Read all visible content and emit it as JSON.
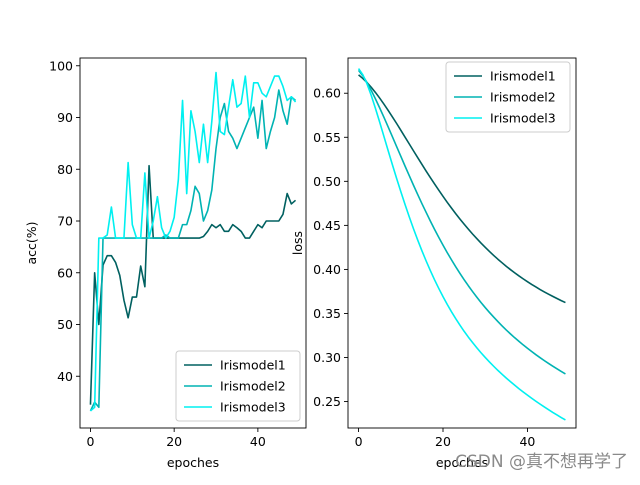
{
  "chart_data": [
    {
      "type": "line",
      "title": "",
      "xlabel": "epoches",
      "ylabel": "acc(%)",
      "xlim": [
        -2.5,
        51.5
      ],
      "ylim": [
        30,
        101.5
      ],
      "xticks": [
        0,
        20,
        40
      ],
      "yticks": [
        40,
        50,
        60,
        70,
        80,
        90,
        100
      ],
      "legend_position": "lower-right",
      "series": [
        {
          "name": "Irismodel1",
          "color": "#006060",
          "x": [
            0,
            1,
            2,
            3,
            4,
            5,
            6,
            7,
            8,
            9,
            10,
            11,
            12,
            13,
            14,
            15,
            16,
            17,
            18,
            19,
            20,
            21,
            22,
            23,
            24,
            25,
            26,
            27,
            28,
            29,
            30,
            31,
            32,
            33,
            34,
            35,
            36,
            37,
            38,
            39,
            40,
            41,
            42,
            43,
            44,
            45,
            46,
            47,
            48,
            49
          ],
          "values": [
            34.5,
            60,
            50,
            61.5,
            63.3,
            63.3,
            62,
            59.5,
            54.7,
            51.3,
            55.3,
            55.3,
            61.3,
            57.3,
            80.7,
            66.7,
            66.7,
            66.7,
            66.7,
            66.7,
            66.7,
            66.7,
            66.7,
            66.7,
            66.7,
            66.7,
            66.7,
            67,
            68,
            69.3,
            68.7,
            69.3,
            68,
            68,
            69.3,
            68.7,
            68,
            66.7,
            66.7,
            68,
            69.3,
            68.7,
            70,
            70,
            70,
            70,
            71.3,
            75.3,
            73.3,
            74
          ]
        },
        {
          "name": "Irismodel2",
          "color": "#00b3b3",
          "x": [
            0,
            1,
            2,
            3,
            4,
            5,
            6,
            7,
            8,
            9,
            10,
            11,
            12,
            13,
            14,
            15,
            16,
            17,
            18,
            19,
            20,
            21,
            22,
            23,
            24,
            25,
            26,
            27,
            28,
            29,
            30,
            31,
            32,
            33,
            34,
            35,
            36,
            37,
            38,
            39,
            40,
            41,
            42,
            43,
            44,
            45,
            46,
            47,
            48,
            49
          ],
          "values": [
            33.3,
            35,
            34,
            66.7,
            66.7,
            66.7,
            66.7,
            66.7,
            66.7,
            66.7,
            66.7,
            66.7,
            66.7,
            66.7,
            66.7,
            66.7,
            66.7,
            66.7,
            67.3,
            66.7,
            66.7,
            66.7,
            69.3,
            69.3,
            72,
            76.7,
            75.3,
            70,
            72,
            76,
            84,
            90,
            92.7,
            87.3,
            86,
            84,
            86,
            88,
            90,
            92,
            86,
            93.3,
            84,
            87.3,
            90,
            95.3,
            91.3,
            88.7,
            94,
            93.3
          ]
        },
        {
          "name": "Irismodel3",
          "color": "#00f0f0",
          "x": [
            0,
            1,
            2,
            3,
            4,
            5,
            6,
            7,
            8,
            9,
            10,
            11,
            12,
            13,
            14,
            15,
            16,
            17,
            18,
            19,
            20,
            21,
            22,
            23,
            24,
            25,
            26,
            27,
            28,
            29,
            30,
            31,
            32,
            33,
            34,
            35,
            36,
            37,
            38,
            39,
            40,
            41,
            42,
            43,
            44,
            45,
            46,
            47,
            48,
            49
          ],
          "values": [
            33.3,
            34,
            66.7,
            66.7,
            67.3,
            72.7,
            66.7,
            66.7,
            66.7,
            81.3,
            69.3,
            66.7,
            66.7,
            79.3,
            66.7,
            70,
            74.7,
            68.7,
            66.7,
            68,
            70.7,
            78,
            93.3,
            75.3,
            91.3,
            87.3,
            81.3,
            88.7,
            81.3,
            89.3,
            98.7,
            87.3,
            86.7,
            92,
            97.3,
            92,
            92.7,
            98,
            90,
            96.7,
            96.7,
            94.7,
            94,
            96,
            98,
            98,
            96,
            93.3,
            94,
            93
          ]
        }
      ]
    },
    {
      "type": "line",
      "title": "",
      "xlabel": "epoches",
      "ylabel": "loss",
      "xlim": [
        -2.5,
        51.5
      ],
      "ylim": [
        0.22,
        0.64
      ],
      "xticks": [
        0,
        20,
        40
      ],
      "yticks": [
        0.25,
        0.3,
        0.35,
        0.4,
        0.45,
        0.5,
        0.55,
        0.6
      ],
      "legend_position": "upper-right",
      "series": [
        {
          "name": "Irismodel1",
          "color": "#006060",
          "x": [
            0,
            1,
            2,
            3,
            4,
            5,
            6,
            7,
            8,
            9,
            10,
            11,
            12,
            13,
            14,
            15,
            16,
            17,
            18,
            19,
            20,
            21,
            22,
            23,
            24,
            25,
            26,
            27,
            28,
            29,
            30,
            31,
            32,
            33,
            34,
            35,
            36,
            37,
            38,
            39,
            40,
            41,
            42,
            43,
            44,
            45,
            46,
            47,
            48,
            49
          ],
          "values": [
            0.6209,
            0.6168,
            0.6121,
            0.6068,
            0.6009,
            0.5945,
            0.5877,
            0.5806,
            0.5733,
            0.5658,
            0.5581,
            0.5503,
            0.5425,
            0.5347,
            0.527,
            0.5193,
            0.5117,
            0.5043,
            0.497,
            0.4899,
            0.483,
            0.4762,
            0.4697,
            0.4634,
            0.4573,
            0.4514,
            0.4457,
            0.4402,
            0.435,
            0.4299,
            0.4251,
            0.4204,
            0.4159,
            0.4116,
            0.4075,
            0.4035,
            0.3997,
            0.3961,
            0.3926,
            0.3893,
            0.3861,
            0.383,
            0.3801,
            0.3772,
            0.3745,
            0.3719,
            0.3694,
            0.367,
            0.3646,
            0.3624
          ]
        },
        {
          "name": "Irismodel2",
          "color": "#00b3b3",
          "x": [
            0,
            1,
            2,
            3,
            4,
            5,
            6,
            7,
            8,
            9,
            10,
            11,
            12,
            13,
            14,
            15,
            16,
            17,
            18,
            19,
            20,
            21,
            22,
            23,
            24,
            25,
            26,
            27,
            28,
            29,
            30,
            31,
            32,
            33,
            34,
            35,
            36,
            37,
            38,
            39,
            40,
            41,
            42,
            43,
            44,
            45,
            46,
            47,
            48,
            49
          ],
          "values": [
            0.626,
            0.6199,
            0.6121,
            0.6033,
            0.5936,
            0.5834,
            0.5728,
            0.5619,
            0.5508,
            0.5396,
            0.5285,
            0.5174,
            0.5065,
            0.4957,
            0.4851,
            0.4748,
            0.4648,
            0.455,
            0.4455,
            0.4364,
            0.4276,
            0.4191,
            0.411,
            0.4031,
            0.3956,
            0.3884,
            0.3815,
            0.3749,
            0.3686,
            0.3625,
            0.3567,
            0.3512,
            0.3459,
            0.3408,
            0.3359,
            0.3312,
            0.3267,
            0.3224,
            0.3183,
            0.3143,
            0.3105,
            0.3068,
            0.3032,
            0.2998,
            0.2965,
            0.2933,
            0.2902,
            0.2872,
            0.2842,
            0.2814
          ]
        },
        {
          "name": "Irismodel3",
          "color": "#00f0f0",
          "x": [
            0,
            1,
            2,
            3,
            4,
            5,
            6,
            7,
            8,
            9,
            10,
            11,
            12,
            13,
            14,
            15,
            16,
            17,
            18,
            19,
            20,
            21,
            22,
            23,
            24,
            25,
            26,
            27,
            28,
            29,
            30,
            31,
            32,
            33,
            34,
            35,
            36,
            37,
            38,
            39,
            40,
            41,
            42,
            43,
            44,
            45,
            46,
            47,
            48,
            49
          ],
          "values": [
            0.628,
            0.6211,
            0.6107,
            0.5976,
            0.5828,
            0.5672,
            0.5511,
            0.535,
            0.5191,
            0.5035,
            0.4884,
            0.4738,
            0.4598,
            0.4463,
            0.4335,
            0.4213,
            0.4097,
            0.3987,
            0.3882,
            0.3784,
            0.3691,
            0.3603,
            0.352,
            0.3442,
            0.3368,
            0.3298,
            0.3232,
            0.317,
            0.3111,
            0.3054,
            0.3001,
            0.295,
            0.2901,
            0.2854,
            0.2809,
            0.2766,
            0.2725,
            0.2685,
            0.2646,
            0.2609,
            0.2573,
            0.2538,
            0.2504,
            0.2471,
            0.2439,
            0.2408,
            0.2377,
            0.2348,
            0.2319,
            0.2291
          ]
        }
      ]
    }
  ],
  "watermark": "CSDN @真不想再学了"
}
